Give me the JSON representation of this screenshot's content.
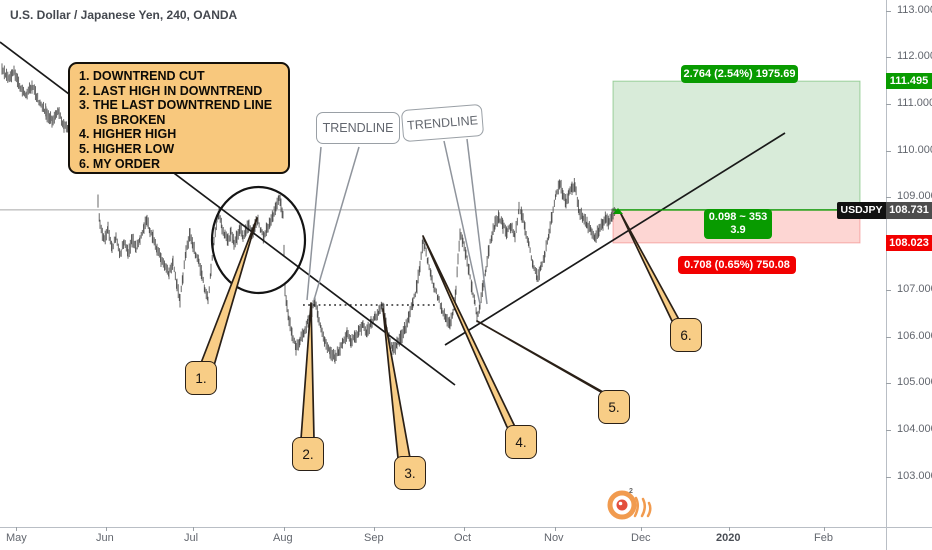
{
  "header": {
    "title": "U.S. Dollar / Japanese Yen, 240, OANDA"
  },
  "note_box": {
    "lines": [
      "1. DOWNTREND CUT",
      "2. LAST HIGH IN DOWNTREND",
      "3. THE LAST DOWNTREND LINE",
      "IS BROKEN",
      "4. HIGHER HIGH",
      "5. HIGHER LOW",
      "6. MY ORDER"
    ]
  },
  "trendline_callouts": [
    {
      "text": "TRENDLINE"
    },
    {
      "text": "TRENDLINE"
    }
  ],
  "balloons": [
    {
      "label": "1."
    },
    {
      "label": "2."
    },
    {
      "label": "3."
    },
    {
      "label": "4."
    },
    {
      "label": "5."
    },
    {
      "label": "6."
    }
  ],
  "position_tool": {
    "symbol_tag": "USDJPY",
    "target_text": "2.764 (2.54%) 1975.69",
    "rr_line1": "0.098 ~ 353",
    "rr_line2": "3.9",
    "stop_text": "0.708 (0.65%) 750.08",
    "target_price_label": "111.495",
    "entry_price_label": "108.731",
    "stop_price_label": "108.023"
  },
  "colors": {
    "profit_zone": "rgba(76,165,80,0.22)",
    "loss_zone": "rgba(244,67,54,0.22)",
    "pill_green": "#089b00",
    "pill_red": "#f20000",
    "note_fill": "#f8c87d",
    "candle": "#3e3e3e",
    "trend_line": "#1a1a1a"
  },
  "axes": {
    "price_ticks": [
      "113.000",
      "112.000",
      "111.000",
      "110.000",
      "109.000",
      "107.000",
      "106.000",
      "105.000",
      "104.000",
      "103.000"
    ],
    "time_ticks": [
      "May",
      "Jun",
      "Jul",
      "Aug",
      "Sep",
      "Oct",
      "Nov",
      "Dec",
      "2020",
      "Feb"
    ]
  },
  "chart_data": {
    "type": "candlestick",
    "title": "U.S. Dollar / Japanese Yen, 240, OANDA",
    "symbol": "USDJPY",
    "timeframe_minutes": 240,
    "exchange": "OANDA",
    "y_axis": {
      "ticks": [
        113,
        112,
        111,
        110,
        109,
        107,
        106,
        105,
        104,
        103
      ],
      "range": [
        102.8,
        113.2
      ],
      "side": "right",
      "grid": false
    },
    "x_axis": {
      "labels": [
        "May",
        "Jun",
        "Jul",
        "Aug",
        "Sep",
        "Oct",
        "Nov",
        "Dec",
        "2020",
        "Feb"
      ]
    },
    "levels": {
      "current_price": 108.731,
      "target": 111.495,
      "stop": 108.023
    },
    "long_position": {
      "entry": 108.731,
      "target": 111.495,
      "stop": 108.023,
      "reward_text": "2.764 (2.54%) 1975.69",
      "risk_text": "0.708 (0.65%) 750.08",
      "rr_text": "0.098 ~ 353",
      "rr_value": "3.9"
    },
    "annotations": {
      "numbered_markers": [
        "1. DOWNTREND CUT",
        "2. LAST HIGH IN DOWNTREND",
        "3. THE LAST DOWNTREND LINE IS BROKEN",
        "4. HIGHER HIGH",
        "5. HIGHER LOW",
        "6. MY ORDER"
      ],
      "trendline_labels": [
        "TRENDLINE",
        "TRENDLINE"
      ]
    },
    "price_path": [
      [
        2,
        111.78
      ],
      [
        8,
        111.56
      ],
      [
        14,
        111.69
      ],
      [
        20,
        111.35
      ],
      [
        26,
        111.2
      ],
      [
        32,
        111.39
      ],
      [
        40,
        111.0
      ],
      [
        46,
        110.83
      ],
      [
        52,
        110.66
      ],
      [
        58,
        110.83
      ],
      [
        64,
        110.55
      ],
      [
        70,
        110.38
      ],
      [
        76,
        110.49
      ],
      [
        82,
        110.12
      ],
      [
        88,
        109.91
      ],
      [
        93,
        109.76
      ],
      [
        97,
        109.7
      ],
      [
        98,
        108.9
      ],
      [
        100,
        108.4
      ],
      [
        104,
        108.11
      ],
      [
        108,
        108.32
      ],
      [
        112,
        107.89
      ],
      [
        116,
        108.17
      ],
      [
        120,
        107.75
      ],
      [
        124,
        108.07
      ],
      [
        128,
        107.81
      ],
      [
        132,
        108.11
      ],
      [
        136,
        107.9
      ],
      [
        140,
        108.07
      ],
      [
        144,
        108.37
      ],
      [
        147,
        108.5
      ],
      [
        150,
        108.28
      ],
      [
        153,
        108.15
      ],
      [
        157,
        107.9
      ],
      [
        161,
        107.68
      ],
      [
        165,
        107.51
      ],
      [
        169,
        107.38
      ],
      [
        173,
        107.6
      ],
      [
        177,
        107.1
      ],
      [
        180,
        106.82
      ],
      [
        183,
        107.31
      ],
      [
        186,
        107.85
      ],
      [
        190,
        108.22
      ],
      [
        193,
        107.96
      ],
      [
        196,
        107.75
      ],
      [
        199,
        107.6
      ],
      [
        202,
        107.32
      ],
      [
        205,
        107.0
      ],
      [
        208,
        106.83
      ],
      [
        211,
        107.43
      ],
      [
        214,
        108.07
      ],
      [
        217,
        108.5
      ],
      [
        219,
        108.67
      ],
      [
        222,
        108.33
      ],
      [
        225,
        108.18
      ],
      [
        228,
        108.07
      ],
      [
        231,
        108.28
      ],
      [
        234,
        108.0
      ],
      [
        237,
        108.15
      ],
      [
        240,
        108.32
      ],
      [
        243,
        108.13
      ],
      [
        246,
        108.28
      ],
      [
        249,
        108.45
      ],
      [
        252,
        108.24
      ],
      [
        255,
        108.39
      ],
      [
        258,
        108.54
      ],
      [
        261,
        108.28
      ],
      [
        264,
        108.13
      ],
      [
        267,
        108.32
      ],
      [
        270,
        108.45
      ],
      [
        273,
        108.62
      ],
      [
        276,
        108.82
      ],
      [
        279,
        108.97
      ],
      [
        281,
        108.84
      ],
      [
        283,
        108.6
      ],
      [
        284,
        107.86
      ],
      [
        285,
        107.01
      ],
      [
        287,
        106.67
      ],
      [
        289,
        106.39
      ],
      [
        292,
        106.03
      ],
      [
        296,
        105.77
      ],
      [
        300,
        105.92
      ],
      [
        304,
        106.13
      ],
      [
        308,
        106.35
      ],
      [
        312,
        106.61
      ],
      [
        315,
        106.76
      ],
      [
        318,
        106.45
      ],
      [
        321,
        106.15
      ],
      [
        325,
        105.9
      ],
      [
        330,
        105.7
      ],
      [
        335,
        105.57
      ],
      [
        339,
        105.73
      ],
      [
        343,
        105.92
      ],
      [
        347,
        106.08
      ],
      [
        351,
        105.88
      ],
      [
        355,
        106.02
      ],
      [
        359,
        106.15
      ],
      [
        363,
        106.24
      ],
      [
        367,
        106.11
      ],
      [
        371,
        106.3
      ],
      [
        375,
        106.43
      ],
      [
        379,
        106.56
      ],
      [
        382,
        106.67
      ],
      [
        384,
        106.6
      ],
      [
        386,
        106.3
      ],
      [
        389,
        105.98
      ],
      [
        393,
        105.72
      ],
      [
        397,
        105.85
      ],
      [
        401,
        106.0
      ],
      [
        405,
        106.2
      ],
      [
        409,
        106.45
      ],
      [
        413,
        106.76
      ],
      [
        417,
        107.1
      ],
      [
        420,
        107.55
      ],
      [
        423,
        108.1
      ],
      [
        425,
        107.95
      ],
      [
        428,
        107.6
      ],
      [
        431,
        107.3
      ],
      [
        434,
        107.1
      ],
      [
        438,
        106.85
      ],
      [
        442,
        106.6
      ],
      [
        446,
        106.42
      ],
      [
        450,
        106.26
      ],
      [
        453,
        106.5
      ],
      [
        456,
        107.05
      ],
      [
        458,
        107.7
      ],
      [
        460,
        108.2
      ],
      [
        463,
        108.05
      ],
      [
        466,
        107.75
      ],
      [
        469,
        107.42
      ],
      [
        472,
        107.05
      ],
      [
        475,
        106.72
      ],
      [
        477,
        106.4
      ],
      [
        480,
        106.7
      ],
      [
        483,
        107.1
      ],
      [
        486,
        107.5
      ],
      [
        489,
        107.9
      ],
      [
        492,
        108.2
      ],
      [
        495,
        108.42
      ],
      [
        499,
        108.58
      ],
      [
        503,
        108.4
      ],
      [
        507,
        108.26
      ],
      [
        511,
        108.4
      ],
      [
        515,
        108.15
      ],
      [
        519,
        108.8
      ],
      [
        522,
        108.62
      ],
      [
        525,
        108.35
      ],
      [
        529,
        107.95
      ],
      [
        533,
        107.55
      ],
      [
        537,
        107.28
      ],
      [
        541,
        107.5
      ],
      [
        545,
        107.8
      ],
      [
        549,
        108.25
      ],
      [
        552,
        108.6
      ],
      [
        556,
        109.05
      ],
      [
        560,
        109.28
      ],
      [
        563,
        109.05
      ],
      [
        566,
        108.9
      ],
      [
        569,
        109.1
      ],
      [
        572,
        109.22
      ],
      [
        575,
        109.25
      ],
      [
        579,
        108.72
      ],
      [
        583,
        108.55
      ],
      [
        587,
        108.42
      ],
      [
        591,
        108.28
      ],
      [
        595,
        108.14
      ],
      [
        599,
        108.3
      ],
      [
        603,
        108.45
      ],
      [
        606,
        108.58
      ],
      [
        609,
        108.48
      ],
      [
        612,
        108.6
      ],
      [
        616,
        108.71
      ]
    ]
  }
}
